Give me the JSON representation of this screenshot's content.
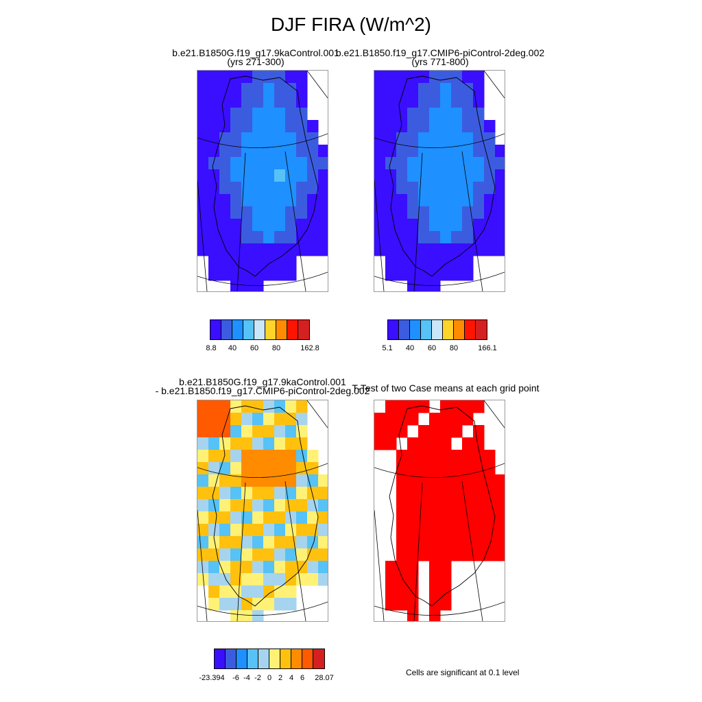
{
  "title": "DJF FIRA (W/m^2)",
  "panels": {
    "case1": {
      "title_line1": "b.e21.B1850G.f19_g17.9kaControl.001",
      "title_line2": "(yrs 271-300)"
    },
    "case2": {
      "title_line1": "b.e21.B1850.f19_g17.CMIP6-piControl-2deg.002",
      "title_line2": "(yrs 771-800)"
    },
    "diff": {
      "title_line1": "b.e21.B1850G.f19_g17.9kaControl.001",
      "title_line2": "- b.e21.B1850.f19_g17.CMIP6-piControl-2deg.002"
    },
    "ttest": {
      "title_line1": "T-Test of two Case means at each grid point"
    }
  },
  "legends": {
    "case1": {
      "colors": [
        "#3a0eff",
        "#3c5ce0",
        "#1e90ff",
        "#56c2f5",
        "#c9e7f8",
        "#ffd42a",
        "#ff8c00",
        "#ff1400",
        "#d42020"
      ],
      "labels": [
        "8.8",
        "40",
        "60",
        "80",
        "162.8"
      ]
    },
    "case2": {
      "colors": [
        "#3a0eff",
        "#3c5ce0",
        "#1e90ff",
        "#56c2f5",
        "#c9e7f8",
        "#ffd42a",
        "#ff8c00",
        "#ff1400",
        "#d42020"
      ],
      "labels": [
        "5.1",
        "40",
        "60",
        "80",
        "166.1"
      ]
    },
    "diff": {
      "colors": [
        "#3a0eff",
        "#3c5ce0",
        "#1e90ff",
        "#56c2f5",
        "#a6d4ee",
        "#fff176",
        "#ffc10e",
        "#ff8c00",
        "#ff5a00",
        "#d42020"
      ],
      "labels": [
        "-23.394",
        "-6",
        "-4",
        "-2",
        "0",
        "2",
        "4",
        "6",
        "28.07"
      ]
    }
  },
  "significance_note": "Cells are significant at 0.1 level",
  "significance_color": "#ff0000"
}
